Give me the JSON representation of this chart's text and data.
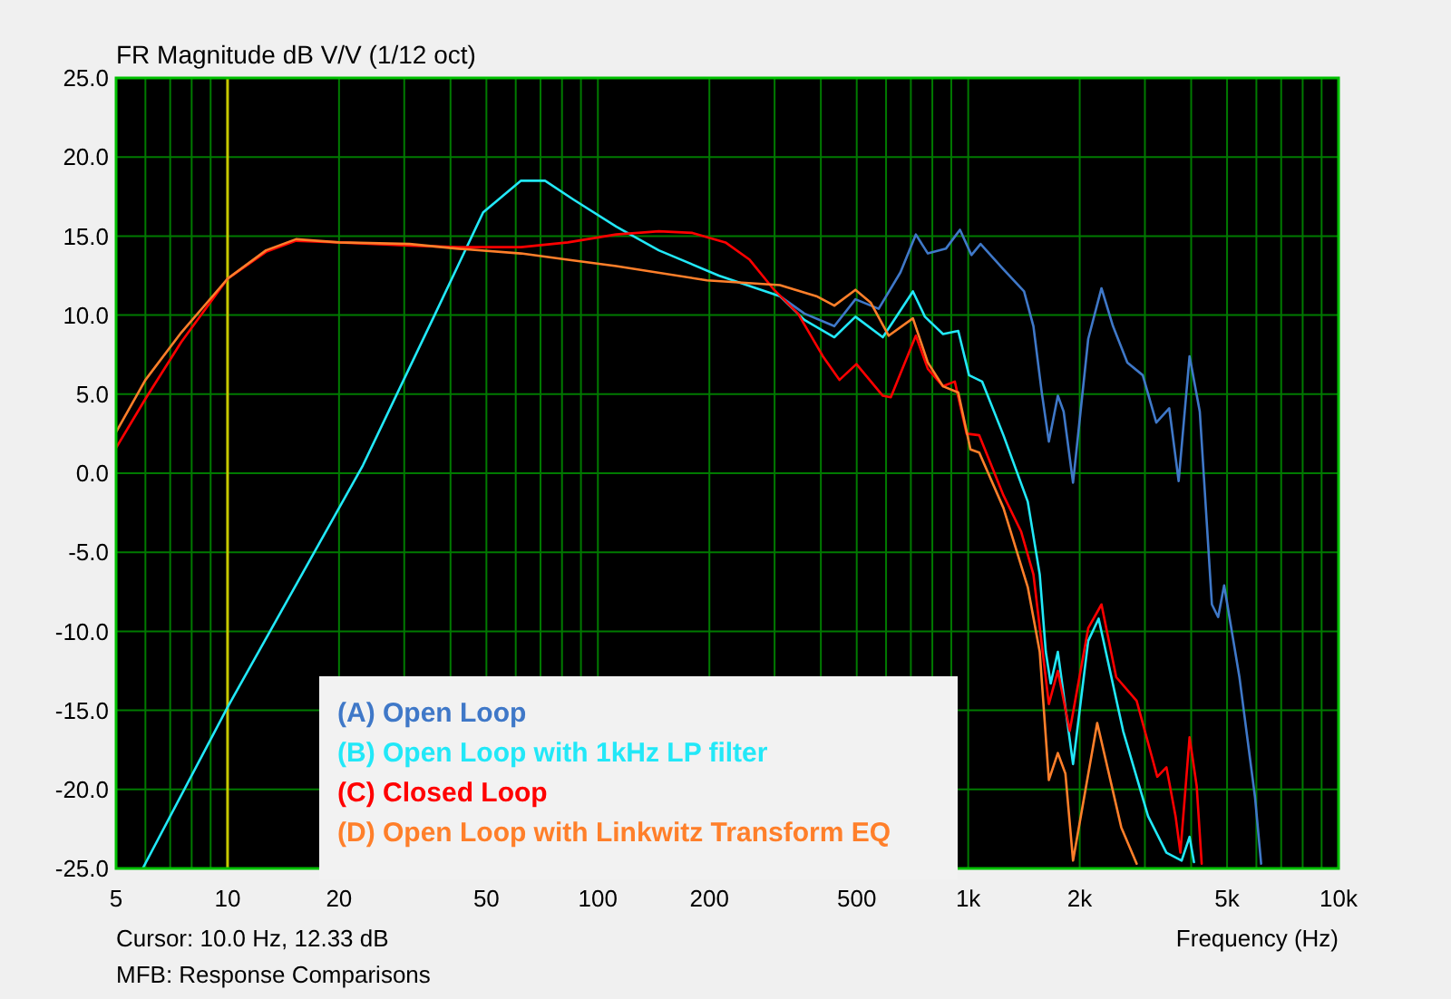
{
  "chart_data": {
    "type": "line",
    "title": "FR Magnitude dB V/V (1/12 oct)",
    "xlabel": "Frequency (Hz)",
    "annotations": [
      "Cursor: 10.0 Hz, 12.33 dB",
      "MFB: Response Comparisons"
    ],
    "log": "x",
    "grid": true,
    "legend": "bottom",
    "line_style": "solid",
    "marker": "none",
    "xlim": [
      5,
      10000
    ],
    "xticks": [
      5,
      {
        "value": 6,
        "label": null
      },
      {
        "value": 7,
        "label": null
      },
      {
        "value": 8,
        "label": null
      },
      {
        "value": 9,
        "label": null
      },
      10,
      20,
      {
        "value": 30,
        "label": null
      },
      {
        "value": 40,
        "label": null
      },
      50,
      {
        "value": 60,
        "label": null
      },
      {
        "value": 70,
        "label": null
      },
      {
        "value": 80,
        "label": null
      },
      {
        "value": 90,
        "label": null
      },
      100,
      200,
      {
        "value": 300,
        "label": null
      },
      {
        "value": 400,
        "label": null
      },
      500,
      {
        "value": 600,
        "label": null
      },
      {
        "value": 700,
        "label": null
      },
      {
        "value": 800,
        "label": null
      },
      {
        "value": 900,
        "label": null
      },
      {
        "value": 1000,
        "label": "1k"
      },
      {
        "value": 2000,
        "label": "2k"
      },
      {
        "value": 3000,
        "label": null
      },
      {
        "value": 4000,
        "label": null
      },
      {
        "value": 5000,
        "label": "5k"
      },
      {
        "value": 6000,
        "label": null
      },
      {
        "value": 7000,
        "label": null
      },
      {
        "value": 8000,
        "label": null
      },
      {
        "value": 9000,
        "label": null
      },
      {
        "value": 10000,
        "label": "10k"
      }
    ],
    "ylim": [
      -25,
      25
    ],
    "yticks": [
      {
        "value": -25,
        "label": "-25.0"
      },
      {
        "value": -20,
        "label": "-20.0"
      },
      {
        "value": -15,
        "label": "-15.0"
      },
      {
        "value": -10,
        "label": "-10.0"
      },
      {
        "value": -5,
        "label": "-5.0"
      },
      {
        "value": 0,
        "label": "0.0"
      },
      {
        "value": 5,
        "label": "5.0"
      },
      {
        "value": 10,
        "label": "10.0"
      },
      {
        "value": 15,
        "label": "15.0"
      },
      {
        "value": 20,
        "label": "20.0"
      },
      {
        "value": 25,
        "label": "25.0"
      }
    ],
    "ref_lines": [
      {
        "axis": "x",
        "value": 10,
        "color": "#c8c800"
      }
    ],
    "series": [
      {
        "name": "(A) Open Loop",
        "color": "#3f78c8",
        "x": [
          310,
          361,
          435,
          496,
          573,
          656,
          722,
          778,
          870,
          950,
          1020,
          1080,
          1245,
          1415,
          1500,
          1580,
          1651,
          1746,
          1810,
          1919,
          2109,
          2290,
          2460,
          2690,
          2960,
          3220,
          3490,
          3700,
          3960,
          4220,
          4550,
          4730,
          4910,
          5400,
          5950,
          6180
        ],
        "values": [
          11.2,
          10.1,
          9.3,
          11.0,
          10.4,
          12.7,
          15.1,
          13.9,
          14.2,
          15.4,
          13.8,
          14.5,
          12.9,
          11.5,
          9.3,
          5.1,
          2.0,
          4.9,
          3.9,
          -0.6,
          8.5,
          11.7,
          9.3,
          7.0,
          6.2,
          3.2,
          4.1,
          -0.5,
          7.4,
          3.9,
          -8.3,
          -9.1,
          -7.1,
          -12.9,
          -20.5,
          -24.7
        ]
      },
      {
        "name": "(B) Open Loop with 1kHz LP filter",
        "color": "#22e8f8",
        "x": [
          5.9,
          10,
          23.2,
          36.4,
          49,
          62,
          72,
          86,
          112,
          146,
          212,
          310,
          361,
          435,
          496,
          588,
          709,
          764,
          855,
          940,
          1005,
          1090,
          1245,
          1448,
          1560,
          1620,
          1670,
          1746,
          1919,
          2109,
          2250,
          2620,
          3060,
          3430,
          3770,
          3960,
          4070
        ],
        "values": [
          -25,
          -14.8,
          0.5,
          10.1,
          16.5,
          18.5,
          18.5,
          17.3,
          15.6,
          14.1,
          12.5,
          11.2,
          9.7,
          8.6,
          9.9,
          8.6,
          11.5,
          9.9,
          8.8,
          9.0,
          6.2,
          5.8,
          2.4,
          -1.8,
          -6.4,
          -11.3,
          -13.3,
          -11.3,
          -18.4,
          -10.6,
          -9.2,
          -16.3,
          -21.7,
          -24.0,
          -24.5,
          -23.0,
          -24.6
        ]
      },
      {
        "name": "(C) Closed Loop",
        "color": "#ff0000",
        "x": [
          5,
          6,
          7.5,
          10,
          12.7,
          15.3,
          20,
          31,
          42,
          62,
          83,
          112,
          146,
          180,
          221,
          257,
          299,
          347,
          405,
          449,
          499,
          588,
          618,
          722,
          778,
          855,
          920,
          990,
          1071,
          1245,
          1390,
          1500,
          1651,
          1746,
          1880,
          2109,
          2290,
          2510,
          2850,
          3240,
          3430,
          3630,
          3740,
          3960,
          4140,
          4270
        ],
        "values": [
          1.6,
          4.7,
          8.3,
          12.3,
          14.0,
          14.7,
          14.6,
          14.4,
          14.3,
          14.3,
          14.6,
          15.1,
          15.3,
          15.2,
          14.6,
          13.5,
          11.6,
          10.1,
          7.4,
          5.9,
          6.9,
          4.9,
          4.8,
          8.7,
          6.6,
          5.5,
          5.8,
          2.5,
          2.4,
          -1.4,
          -3.7,
          -6.4,
          -14.6,
          -12.5,
          -16.3,
          -9.8,
          -8.3,
          -12.9,
          -14.4,
          -19.2,
          -18.6,
          -21.7,
          -24.0,
          -16.7,
          -19.8,
          -24.7
        ]
      },
      {
        "name": "(D) Open Loop with Linkwitz Transform EQ",
        "color": "#ff7f2a",
        "x": [
          5,
          6,
          7.5,
          10,
          12.7,
          15.3,
          20,
          31,
          42,
          62,
          83,
          112,
          197,
          310,
          389,
          435,
          496,
          545,
          610,
          709,
          778,
          855,
          940,
          1014,
          1071,
          1245,
          1448,
          1560,
          1651,
          1746,
          1830,
          1919,
          2230,
          2590,
          2850
        ],
        "values": [
          2.6,
          5.9,
          8.9,
          12.3,
          14.1,
          14.8,
          14.6,
          14.5,
          14.2,
          13.9,
          13.5,
          13.1,
          12.2,
          11.9,
          11.2,
          10.6,
          11.6,
          10.8,
          8.7,
          9.8,
          7.0,
          5.5,
          5.1,
          1.5,
          1.3,
          -2.2,
          -7.2,
          -11.3,
          -19.4,
          -17.7,
          -19.0,
          -24.5,
          -15.8,
          -22.4,
          -24.7
        ]
      }
    ]
  }
}
